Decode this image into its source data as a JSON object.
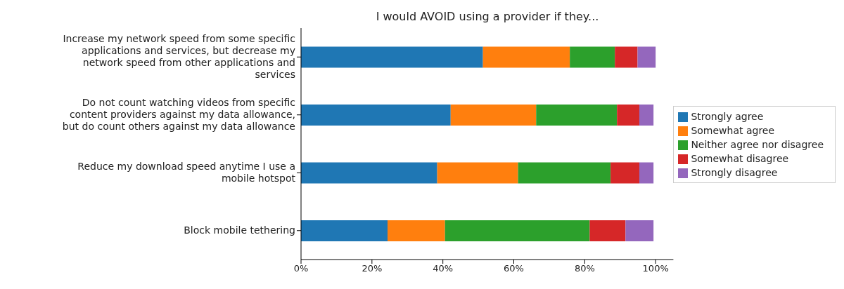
{
  "chart_data": {
    "type": "bar",
    "orientation": "horizontal",
    "stacked": true,
    "title": "I would AVOID using a provider if they...",
    "categories": [
      "Increase my network speed from some specific applications and services, but decrease my network speed from other applications and services",
      "Do not count watching videos from specific content providers against my data allowance, but do count others against my data allowance",
      "Reduce my download speed anytime I use a mobile hotspot",
      "Block mobile tethering"
    ],
    "series": [
      {
        "name": "Strongly agree",
        "color": "#1f77b4",
        "values": [
          51.3,
          42.2,
          38.4,
          24.4
        ]
      },
      {
        "name": "Somewhat agree",
        "color": "#ff7f0e",
        "values": [
          24.5,
          24.1,
          22.8,
          16.2
        ]
      },
      {
        "name": "Neither agree nor disagree",
        "color": "#2ca02c",
        "values": [
          12.7,
          22.8,
          26.1,
          40.8
        ]
      },
      {
        "name": "Somewhat disagree",
        "color": "#d62728",
        "values": [
          6.4,
          6.3,
          8.1,
          10.1
        ]
      },
      {
        "name": "Strongly disagree",
        "color": "#9467bd",
        "values": [
          5.1,
          4.0,
          4.0,
          7.9
        ]
      }
    ],
    "xlim": [
      0,
      105
    ],
    "xticks": [
      {
        "value": 0,
        "label": "0%"
      },
      {
        "value": 20,
        "label": "20%"
      },
      {
        "value": 40,
        "label": "40%"
      },
      {
        "value": 60,
        "label": "60%"
      },
      {
        "value": 80,
        "label": "80%"
      },
      {
        "value": 100,
        "label": "100%"
      }
    ],
    "grid": false,
    "legend": "right"
  }
}
